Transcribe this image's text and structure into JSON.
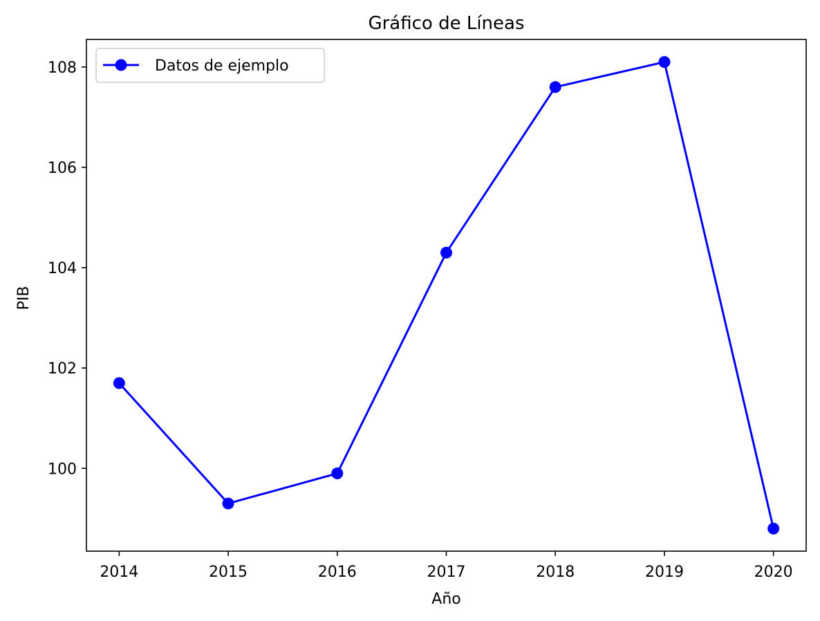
{
  "chart_data": {
    "type": "line",
    "title": "Gráfico de Líneas",
    "xlabel": "Año",
    "ylabel": "PIB",
    "x": [
      2014,
      2015,
      2016,
      2017,
      2018,
      2019,
      2020
    ],
    "series": [
      {
        "name": "Datos de ejemplo",
        "values": [
          101.7,
          99.3,
          99.9,
          104.3,
          107.6,
          108.1,
          98.8
        ],
        "color": "#0000ff",
        "marker": "circle"
      }
    ],
    "xticks": [
      "2014",
      "2015",
      "2016",
      "2017",
      "2018",
      "2019",
      "2020"
    ],
    "yticks": [
      "100",
      "102",
      "104",
      "106",
      "108"
    ],
    "xlim": [
      2013.7,
      2020.3
    ],
    "ylim": [
      98.35,
      108.55
    ],
    "grid": false,
    "legend_position": "upper-left"
  }
}
